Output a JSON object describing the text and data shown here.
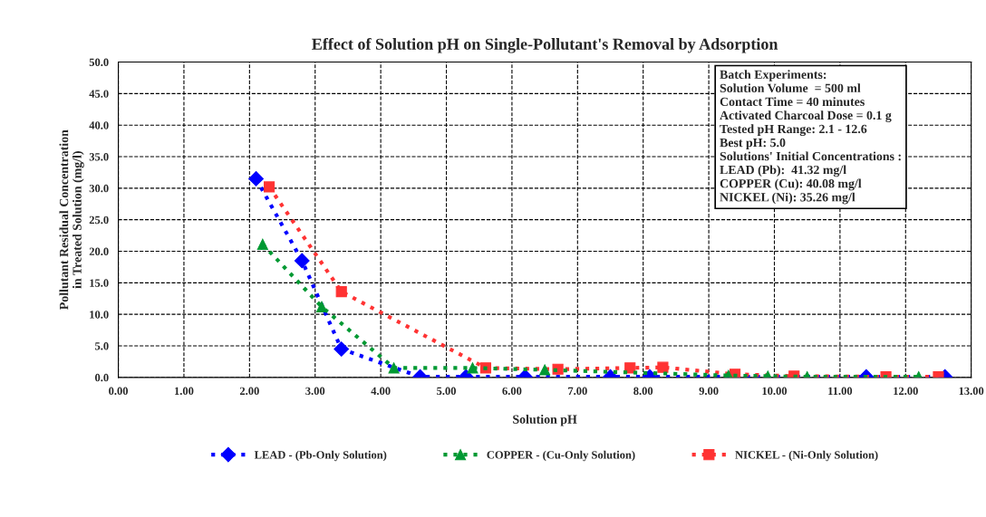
{
  "chart_data": {
    "type": "line",
    "title": "Effect of Solution pH on Single-Pollutant's Removal by Adsorption",
    "xlabel": "Solution pH",
    "ylabel": "Pollutant Residual Concentration\nin Treated Solution (mg/l)",
    "xlim": [
      0,
      13
    ],
    "xticks": [
      {
        "value": 0,
        "label": "0.00"
      },
      {
        "value": 1,
        "label": "1.00"
      },
      {
        "value": 2,
        "label": "2.00"
      },
      {
        "value": 3,
        "label": "3.00"
      },
      {
        "value": 4,
        "label": "4.00"
      },
      {
        "value": 5,
        "label": "5.00"
      },
      {
        "value": 6,
        "label": "6.00"
      },
      {
        "value": 7,
        "label": "7.00"
      },
      {
        "value": 8,
        "label": "8.00"
      },
      {
        "value": 9,
        "label": "9.00"
      },
      {
        "value": 10,
        "label": "10.00"
      },
      {
        "value": 11,
        "label": "11.00"
      },
      {
        "value": 12,
        "label": "12.00"
      },
      {
        "value": 13,
        "label": "13.00"
      }
    ],
    "ylim": [
      0,
      50
    ],
    "yticks": [
      {
        "value": 0,
        "label": "0.0"
      },
      {
        "value": 5,
        "label": "5.0"
      },
      {
        "value": 10,
        "label": "10.0"
      },
      {
        "value": 15,
        "label": "15.0"
      },
      {
        "value": 20,
        "label": "20.0"
      },
      {
        "value": 25,
        "label": "25.0"
      },
      {
        "value": 30,
        "label": "30.0"
      },
      {
        "value": 35,
        "label": "35.0"
      },
      {
        "value": 40,
        "label": "40.0"
      },
      {
        "value": 45,
        "label": "45.0"
      },
      {
        "value": 50,
        "label": "50.0"
      }
    ],
    "grid": true,
    "legend": "bottom",
    "line_style": "dotted",
    "series": [
      {
        "name": "LEAD - (Pb-Only Solution)",
        "color": "#0000ff",
        "marker": "diamond",
        "x": [
          2.1,
          2.8,
          3.4,
          4.6,
          5.3,
          6.2,
          7.5,
          8.1,
          11.4,
          12.6
        ],
        "values": [
          31.5,
          18.5,
          4.5,
          0.1,
          0.1,
          0.1,
          0.1,
          0.1,
          0.1,
          0.1
        ]
      },
      {
        "name": "COPPER - (Cu-Only Solution)",
        "color": "#009933",
        "marker": "triangle",
        "x": [
          2.2,
          3.1,
          4.2,
          5.4,
          6.5,
          9.3,
          9.9,
          10.5,
          12.2
        ],
        "values": [
          21.1,
          11.2,
          1.5,
          1.5,
          1.2,
          0.3,
          0.2,
          0.1,
          0.1
        ]
      },
      {
        "name": "NICKEL - (Ni-Only Solution)",
        "color": "#ff3333",
        "marker": "square",
        "x": [
          2.3,
          3.4,
          5.6,
          6.7,
          7.8,
          8.3,
          9.4,
          10.3,
          11.7,
          12.5
        ],
        "values": [
          30.2,
          13.6,
          1.5,
          1.3,
          1.5,
          1.6,
          0.5,
          0.2,
          0.1,
          0.1
        ]
      }
    ],
    "annotations": [
      "Batch Experiments:",
      "Solution Volume  = 500 ml",
      "Contact Time = 40 minutes",
      "Activated Charcoal Dose = 0.1 g",
      "Tested pH Range: 2.1 - 12.6",
      "Best pH: 5.0",
      "Solutions' Initial Concentrations :",
      "LEAD (Pb):  41.32 mg/l",
      "COPPER (Cu): 40.08 mg/l",
      "NICKEL (Ni): 35.26 mg/l"
    ]
  }
}
